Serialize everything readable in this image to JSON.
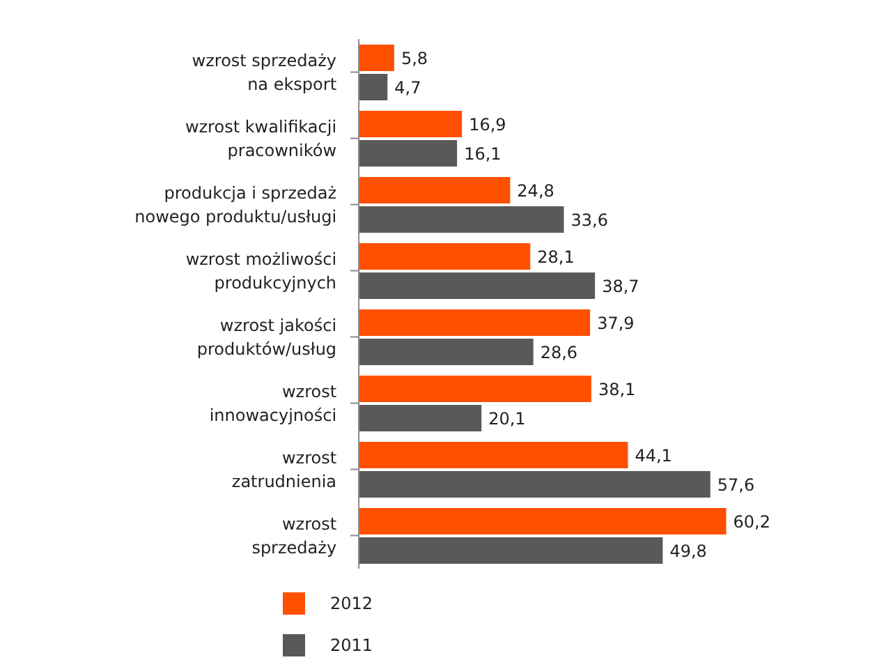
{
  "chart_data": {
    "type": "bar",
    "orientation": "horizontal",
    "categories": [
      "wzrost sprzedaży\nna eksport",
      "wzrost kwalifikacji\npracowników",
      "produkcja i sprzedaż\nnowego produktu/usługi",
      "wzrost możliwości\nprodukcyjnych",
      "wzrost jakości\nproduktów/usług",
      "wzrost\ninnowacyjności",
      "wzrost\nzatrudnienia",
      "wzrost\nsprzedaży"
    ],
    "series": [
      {
        "name": "2012",
        "color": "#ff5000",
        "values": [
          5.8,
          16.9,
          24.8,
          28.1,
          37.9,
          38.1,
          44.1,
          60.2
        ],
        "value_labels": [
          "5,8",
          "16,9",
          "24,8",
          "28,1",
          "37,9",
          "38,1",
          "44,1",
          "60,2"
        ]
      },
      {
        "name": "2011",
        "color": "#595959",
        "values": [
          4.7,
          16.1,
          33.6,
          38.7,
          28.6,
          20.1,
          57.6,
          49.8
        ],
        "value_labels": [
          "4,7",
          "16,1",
          "33,6",
          "38,7",
          "28,6",
          "20,1",
          "57,6",
          "49,8"
        ]
      }
    ],
    "legend": "bottom left"
  }
}
